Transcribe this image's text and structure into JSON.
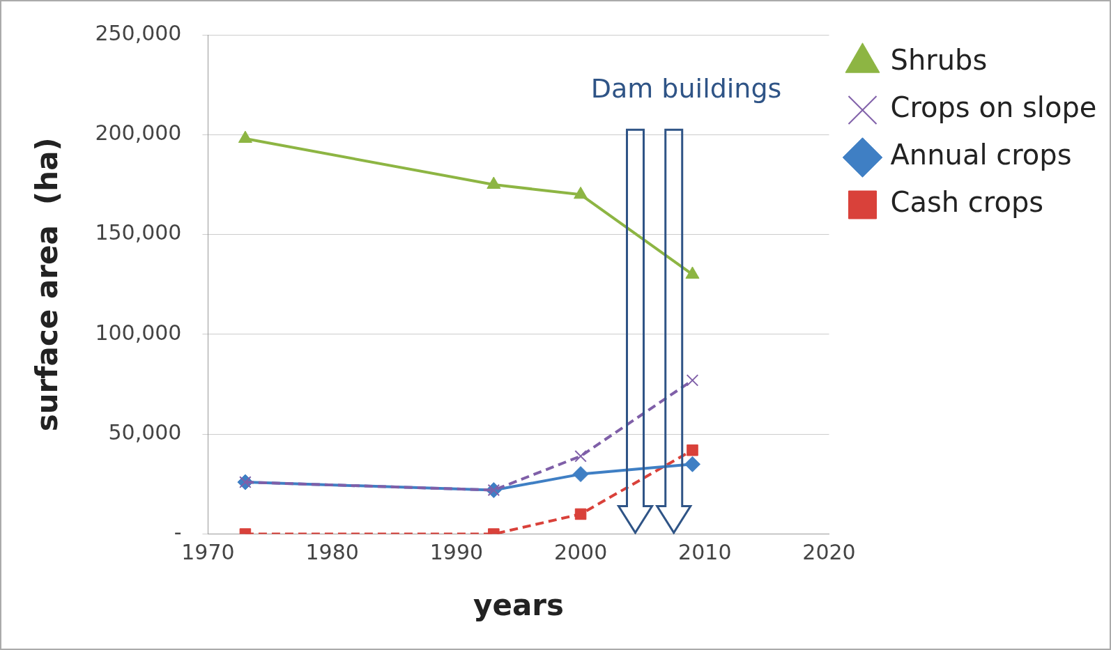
{
  "chart_data": {
    "type": "line",
    "xlabel": "years",
    "ylabel": "surface area  (ha)",
    "x": [
      1973,
      1993,
      2000,
      2009
    ],
    "series": [
      {
        "name": "Shrubs",
        "color": "#8db543",
        "values": [
          198000,
          175000,
          170000,
          130000
        ],
        "marker": "triangle",
        "line_style": "solid"
      },
      {
        "name": "Crops on slope",
        "color": "#7f5fa8",
        "values": [
          26000,
          22000,
          39000,
          77000
        ],
        "marker": "cross",
        "line_style": "dashed"
      },
      {
        "name": "Annual crops",
        "color": "#3f7fc4",
        "values": [
          26000,
          22000,
          30000,
          35000
        ],
        "marker": "diamond",
        "line_style": "solid"
      },
      {
        "name": "Cash crops",
        "color": "#d9413a",
        "values": [
          0,
          0,
          10000,
          42000
        ],
        "marker": "square",
        "line_style": "dashed"
      }
    ],
    "xlim": [
      1970,
      2020
    ],
    "xticks": [
      1970,
      1980,
      1990,
      2000,
      2010,
      2020
    ],
    "ylim": [
      0,
      250000
    ],
    "yticks": [
      {
        "value": 0,
        "label": "-"
      },
      {
        "value": 50000,
        "label": "50,000"
      },
      {
        "value": 100000,
        "label": "100,000"
      },
      {
        "value": 150000,
        "label": "150,000"
      },
      {
        "value": 200000,
        "label": "200,000"
      },
      {
        "value": 250000,
        "label": "250,000"
      }
    ],
    "grid": "y",
    "legend": "right",
    "annotations": [
      "Dam buildings"
    ]
  }
}
